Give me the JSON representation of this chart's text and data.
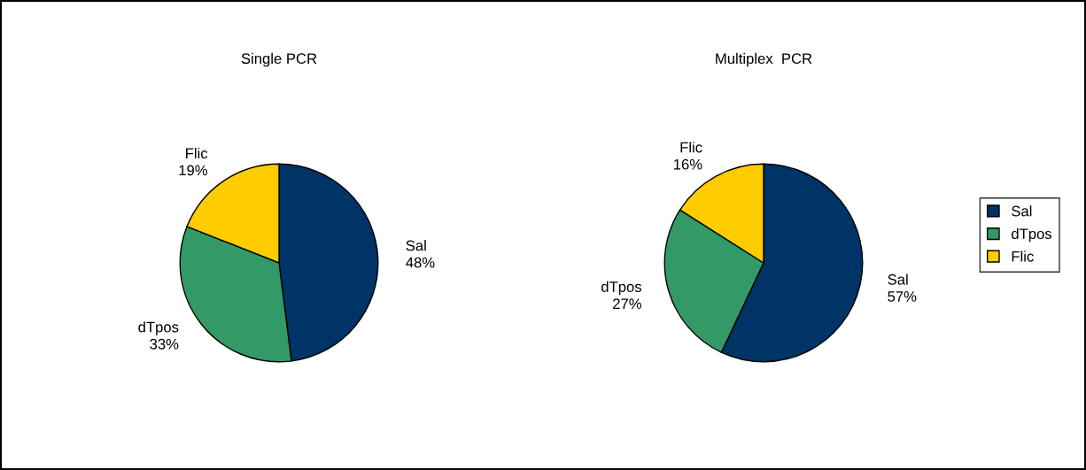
{
  "chart_data": [
    {
      "type": "pie",
      "title": "Single PCR",
      "categories": [
        "Sal",
        "dTpos",
        "Flic"
      ],
      "values": [
        48,
        33,
        19
      ],
      "value_labels": [
        "48%",
        "33%",
        "19%"
      ],
      "colors": [
        "#003366",
        "#339966",
        "#ffcc00"
      ],
      "legend": false
    },
    {
      "type": "pie",
      "title": "Multiplex  PCR",
      "categories": [
        "Sal",
        "dTpos",
        "Flic"
      ],
      "values": [
        57,
        27,
        16
      ],
      "value_labels": [
        "57%",
        "27%",
        "16%"
      ],
      "colors": [
        "#003366",
        "#339966",
        "#ffcc00"
      ],
      "legend": "right"
    }
  ]
}
